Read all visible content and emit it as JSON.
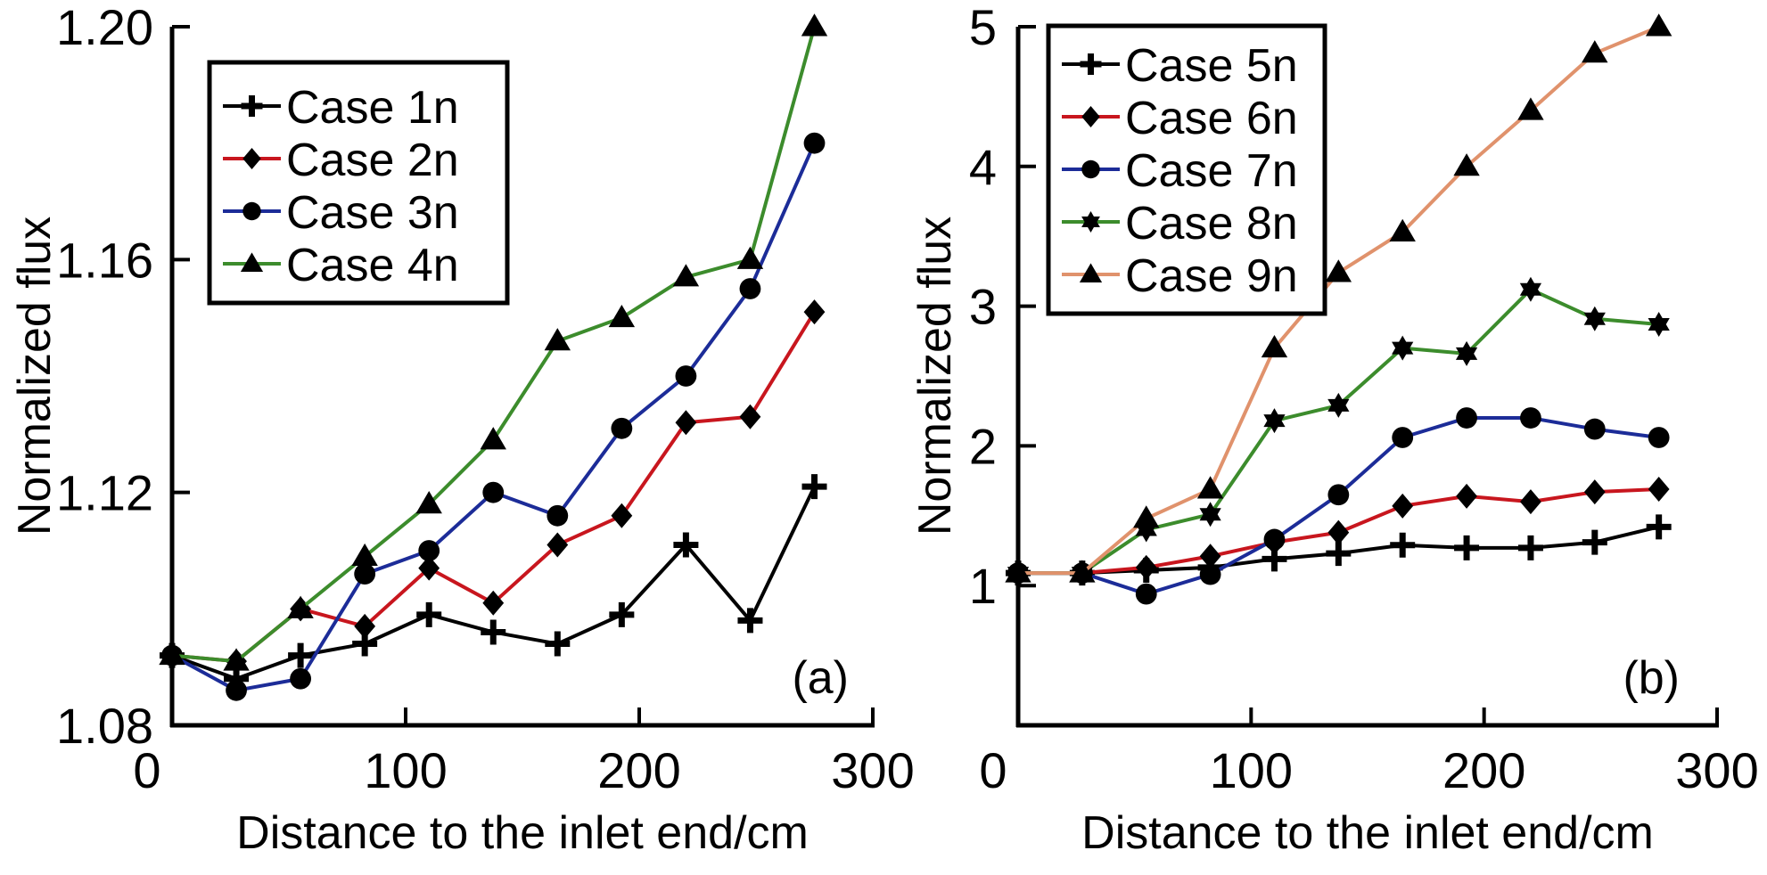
{
  "chart_data": [
    {
      "type": "line",
      "panel_label": "(a)",
      "xlabel": "Distance to the inlet end/cm",
      "ylabel": "Normalized flux",
      "xlim": [
        0,
        300
      ],
      "ylim": [
        1.08,
        1.2
      ],
      "xticks": [
        0,
        100,
        200,
        300
      ],
      "xtick_labels": [
        "0",
        "100",
        "200",
        "300"
      ],
      "yticks": [
        1.08,
        1.12,
        1.16,
        1.2
      ],
      "ytick_labels": [
        "1.08",
        "1.12",
        "1.16",
        "1.20"
      ],
      "grid": false,
      "legend_position": "top-left",
      "x": [
        0,
        27.5,
        55,
        82.5,
        110,
        137.5,
        165,
        192.5,
        220,
        247.5,
        275
      ],
      "series": [
        {
          "name": "Case 1n",
          "color": "#000000",
          "marker": "plus",
          "values": [
            1.092,
            1.088,
            1.092,
            1.094,
            1.099,
            1.096,
            1.094,
            1.099,
            1.111,
            1.098,
            1.121
          ]
        },
        {
          "name": "Case 2n",
          "color": "#c8161e",
          "marker": "diamond",
          "values": [
            1.092,
            1.091,
            1.1,
            1.097,
            1.107,
            1.101,
            1.111,
            1.116,
            1.132,
            1.133,
            1.151
          ]
        },
        {
          "name": "Case 3n",
          "color": "#1c2c98",
          "marker": "circle",
          "values": [
            1.092,
            1.086,
            1.088,
            1.106,
            1.11,
            1.12,
            1.116,
            1.131,
            1.14,
            1.155,
            1.18
          ]
        },
        {
          "name": "Case 4n",
          "color": "#3c8c2c",
          "marker": "triangle",
          "values": [
            1.092,
            1.091,
            1.1,
            1.109,
            1.118,
            1.129,
            1.146,
            1.15,
            1.157,
            1.16,
            1.2
          ]
        }
      ]
    },
    {
      "type": "line",
      "panel_label": "(b)",
      "xlabel": "Distance to the inlet end/cm",
      "ylabel": "Normalized flux",
      "xlim": [
        0,
        300
      ],
      "ylim": [
        0,
        5
      ],
      "xticks": [
        0,
        100,
        200,
        300
      ],
      "xtick_labels": [
        "0",
        "100",
        "200",
        "300"
      ],
      "yticks": [
        1,
        2,
        3,
        4,
        5
      ],
      "ytick_labels": [
        "1",
        "2",
        "3",
        "4",
        "5"
      ],
      "grid": false,
      "legend_position": "top-left",
      "x": [
        0,
        27.5,
        55,
        82.5,
        110,
        137.5,
        165,
        192.5,
        220,
        247.5,
        275
      ],
      "series": [
        {
          "name": "Case 5n",
          "color": "#000000",
          "marker": "plus",
          "values": [
            1.09,
            1.09,
            1.11,
            1.13,
            1.19,
            1.23,
            1.29,
            1.27,
            1.27,
            1.31,
            1.42
          ]
        },
        {
          "name": "Case 6n",
          "color": "#c8161e",
          "marker": "diamond",
          "values": [
            1.09,
            1.09,
            1.13,
            1.21,
            1.31,
            1.38,
            1.57,
            1.64,
            1.6,
            1.67,
            1.69
          ]
        },
        {
          "name": "Case 7n",
          "color": "#1c2c98",
          "marker": "circle",
          "values": [
            1.09,
            1.09,
            0.94,
            1.08,
            1.33,
            1.65,
            2.06,
            2.2,
            2.2,
            2.12,
            2.06
          ]
        },
        {
          "name": "Case 8n",
          "color": "#3c8c2c",
          "marker": "star",
          "values": [
            1.09,
            1.09,
            1.4,
            1.51,
            2.18,
            2.29,
            2.7,
            2.66,
            3.12,
            2.91,
            2.87
          ]
        },
        {
          "name": "Case 9n",
          "color": "#e0926c",
          "marker": "triangle",
          "values": [
            1.09,
            1.09,
            1.48,
            1.69,
            2.7,
            3.24,
            3.53,
            4.0,
            4.4,
            4.81,
            5.0
          ]
        }
      ]
    }
  ]
}
